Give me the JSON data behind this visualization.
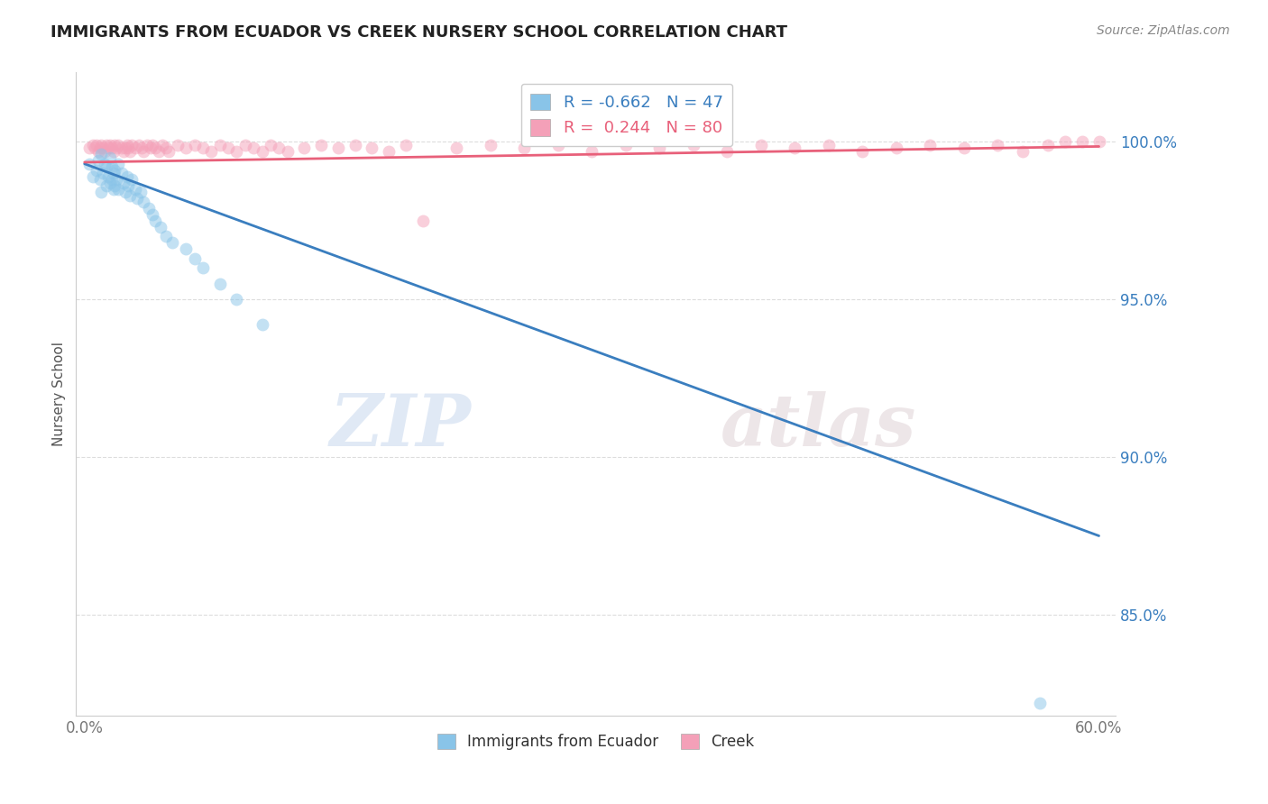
{
  "title": "IMMIGRANTS FROM ECUADOR VS CREEK NURSERY SCHOOL CORRELATION CHART",
  "source": "Source: ZipAtlas.com",
  "xlabel_blue": "Immigrants from Ecuador",
  "xlabel_pink": "Creek",
  "ylabel": "Nursery School",
  "xlim": [
    -0.005,
    0.61
  ],
  "ylim": [
    0.818,
    1.022
  ],
  "yticks": [
    0.85,
    0.9,
    0.95,
    1.0
  ],
  "ytick_labels": [
    "85.0%",
    "90.0%",
    "95.0%",
    "100.0%"
  ],
  "xticks": [
    0.0,
    0.1,
    0.2,
    0.3,
    0.4,
    0.5,
    0.6
  ],
  "xtick_labels": [
    "0.0%",
    "",
    "",
    "",
    "",
    "",
    "60.0%"
  ],
  "blue_R": -0.662,
  "blue_N": 47,
  "pink_R": 0.244,
  "pink_N": 80,
  "blue_color": "#89c4e8",
  "pink_color": "#f4a0b8",
  "blue_line_color": "#3a7ebf",
  "pink_line_color": "#e8607a",
  "watermark_zip": "ZIP",
  "watermark_atlas": "atlas",
  "blue_scatter_x": [
    0.003,
    0.005,
    0.007,
    0.008,
    0.009,
    0.01,
    0.01,
    0.011,
    0.012,
    0.013,
    0.013,
    0.014,
    0.015,
    0.015,
    0.016,
    0.016,
    0.017,
    0.017,
    0.018,
    0.018,
    0.019,
    0.02,
    0.02,
    0.022,
    0.023,
    0.024,
    0.025,
    0.026,
    0.027,
    0.028,
    0.03,
    0.031,
    0.033,
    0.035,
    0.038,
    0.04,
    0.042,
    0.045,
    0.048,
    0.052,
    0.06,
    0.065,
    0.07,
    0.08,
    0.09,
    0.105,
    0.565
  ],
  "blue_scatter_y": [
    0.993,
    0.989,
    0.991,
    0.994,
    0.988,
    0.996,
    0.984,
    0.99,
    0.993,
    0.986,
    0.992,
    0.989,
    0.995,
    0.987,
    0.992,
    0.988,
    0.99,
    0.985,
    0.991,
    0.986,
    0.988,
    0.993,
    0.985,
    0.99,
    0.987,
    0.984,
    0.989,
    0.986,
    0.983,
    0.988,
    0.985,
    0.982,
    0.984,
    0.981,
    0.979,
    0.977,
    0.975,
    0.973,
    0.97,
    0.968,
    0.966,
    0.963,
    0.96,
    0.955,
    0.95,
    0.942,
    0.822
  ],
  "pink_scatter_x": [
    0.003,
    0.005,
    0.006,
    0.007,
    0.008,
    0.009,
    0.01,
    0.011,
    0.012,
    0.013,
    0.014,
    0.015,
    0.016,
    0.017,
    0.018,
    0.019,
    0.02,
    0.022,
    0.023,
    0.024,
    0.025,
    0.026,
    0.027,
    0.028,
    0.03,
    0.032,
    0.034,
    0.035,
    0.037,
    0.039,
    0.04,
    0.042,
    0.044,
    0.046,
    0.048,
    0.05,
    0.055,
    0.06,
    0.065,
    0.07,
    0.075,
    0.08,
    0.085,
    0.09,
    0.095,
    0.1,
    0.105,
    0.11,
    0.115,
    0.12,
    0.13,
    0.14,
    0.15,
    0.16,
    0.17,
    0.18,
    0.19,
    0.2,
    0.22,
    0.24,
    0.26,
    0.28,
    0.3,
    0.32,
    0.34,
    0.36,
    0.38,
    0.4,
    0.42,
    0.44,
    0.46,
    0.48,
    0.5,
    0.52,
    0.54,
    0.555,
    0.57,
    0.58,
    0.59,
    0.6
  ],
  "pink_scatter_y": [
    0.998,
    0.999,
    0.998,
    0.999,
    0.997,
    0.998,
    0.999,
    0.998,
    0.997,
    0.999,
    0.998,
    0.999,
    0.998,
    0.997,
    0.999,
    0.998,
    0.999,
    0.998,
    0.997,
    0.998,
    0.999,
    0.998,
    0.997,
    0.999,
    0.998,
    0.999,
    0.998,
    0.997,
    0.999,
    0.998,
    0.999,
    0.998,
    0.997,
    0.999,
    0.998,
    0.997,
    0.999,
    0.998,
    0.999,
    0.998,
    0.997,
    0.999,
    0.998,
    0.997,
    0.999,
    0.998,
    0.997,
    0.999,
    0.998,
    0.997,
    0.998,
    0.999,
    0.998,
    0.999,
    0.998,
    0.997,
    0.999,
    0.975,
    0.998,
    0.999,
    0.998,
    0.999,
    0.997,
    0.999,
    0.998,
    0.999,
    0.997,
    0.999,
    0.998,
    0.999,
    0.997,
    0.998,
    0.999,
    0.998,
    0.999,
    0.997,
    0.999,
    1.0,
    1.0,
    1.0
  ],
  "blue_trendline_x": [
    0.0,
    0.6
  ],
  "blue_trendline_y": [
    0.993,
    0.875
  ],
  "pink_trendline_x": [
    0.0,
    0.6
  ],
  "pink_trendline_y": [
    0.9935,
    0.9985
  ],
  "grid_color": "#dddddd",
  "spine_color": "#cccccc",
  "tick_color": "#777777",
  "title_color": "#222222",
  "source_color": "#888888",
  "ylabel_color": "#555555"
}
